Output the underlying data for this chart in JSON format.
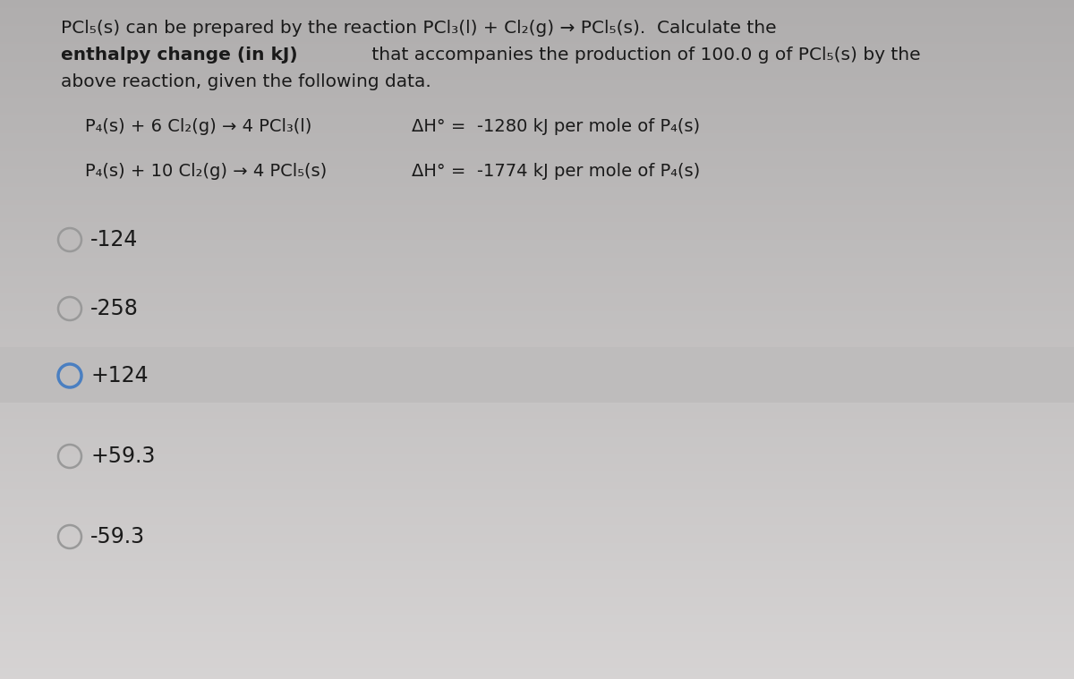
{
  "bg_color_top": "#c8c6c6",
  "bg_color_main": "#d4d2d2",
  "highlight_color": "#c2c0c0",
  "text_color": "#1a1a1a",
  "title_line1": "PCl₅(s) can be prepared by the reaction PCl₃(l) + Cl₂(g) → PCl₅(s).  Calculate the",
  "title_line2_bold": "enthalpy change (in kJ)",
  "title_line2_normal": " that accompanies the production of 100.0 g of PCl₅(s) by the",
  "title_line3": "above reaction, given the following data.",
  "reaction1_left": "P₄(s) + 6 Cl₂(g) → 4 PCl₃(l)",
  "reaction1_right": "ΔH° =  -1280 kJ per mole of P₄(s)",
  "reaction2_left": "P₄(s) + 10 Cl₂(g) → 4 PCl₅(s)",
  "reaction2_right": "ΔH° =  -1774 kJ per mole of P₄(s)",
  "options": [
    "-124",
    "-258",
    "+124",
    "+59.3",
    "-59.3"
  ],
  "selected_index": 2,
  "title_fontsize": 14.5,
  "reaction_fontsize": 14,
  "option_fontsize": 17,
  "circle_color_selected": "#4a7fc1",
  "circle_color_normal": "#999999"
}
